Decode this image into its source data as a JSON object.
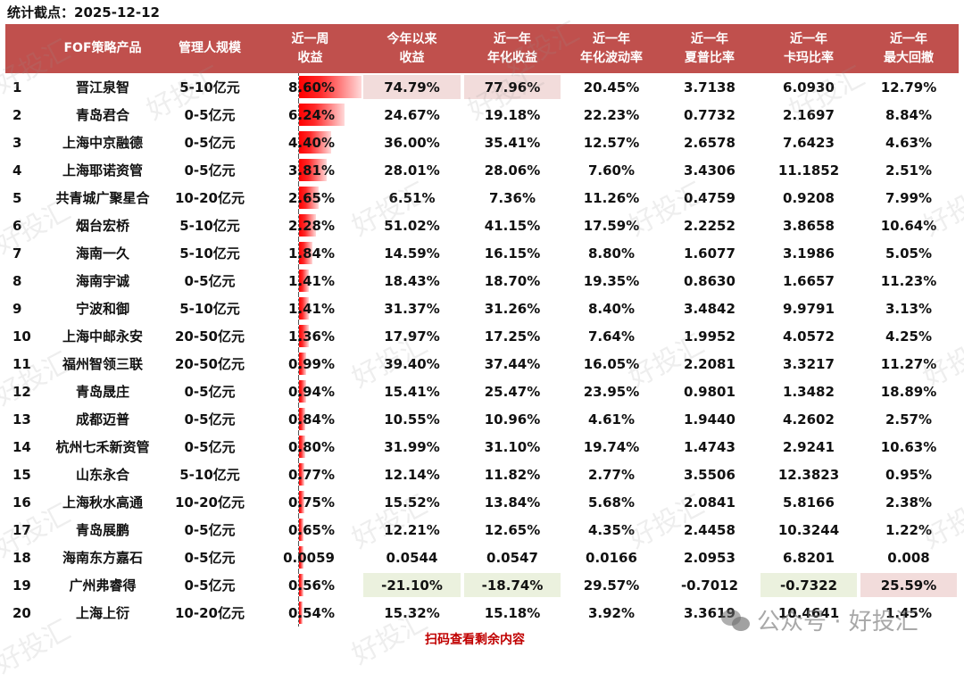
{
  "stat_date": "统计截点：2025-12-12",
  "columns": {
    "rank": "",
    "name": "FOF策略产品",
    "scale": "管理人规模",
    "week_l1": "近一周",
    "week_l2": "收益",
    "ytd_l1": "今年以来",
    "ytd_l2": "收益",
    "ann_l1": "近一年",
    "ann_l2": "年化收益",
    "vol_l1": "近一年",
    "vol_l2": "年化波动率",
    "sharpe_l1": "近一年",
    "sharpe_l2": "夏普比率",
    "calmar_l1": "近一年",
    "calmar_l2": "卡玛比率",
    "mdd_l1": "近一年",
    "mdd_l2": "最大回撤"
  },
  "rows": [
    {
      "rank": "1",
      "name": "晋江泉智",
      "scale": "5-10亿元",
      "week": "8.60%",
      "week_val": 8.6,
      "ytd": "74.79%",
      "ann": "77.96%",
      "vol": "20.45%",
      "sharpe": "3.7138",
      "calmar": "6.0930",
      "mdd": "12.79%"
    },
    {
      "rank": "2",
      "name": "青岛君合",
      "scale": "0-5亿元",
      "week": "6.24%",
      "week_val": 6.24,
      "ytd": "24.67%",
      "ann": "19.18%",
      "vol": "22.23%",
      "sharpe": "0.7732",
      "calmar": "2.1697",
      "mdd": "8.84%"
    },
    {
      "rank": "3",
      "name": "上海中京融德",
      "scale": "0-5亿元",
      "week": "4.40%",
      "week_val": 4.4,
      "ytd": "36.00%",
      "ann": "35.41%",
      "vol": "12.57%",
      "sharpe": "2.6578",
      "calmar": "7.6423",
      "mdd": "4.63%"
    },
    {
      "rank": "4",
      "name": "上海耶诺资管",
      "scale": "0-5亿元",
      "week": "3.81%",
      "week_val": 3.81,
      "ytd": "28.01%",
      "ann": "28.06%",
      "vol": "7.60%",
      "sharpe": "3.4306",
      "calmar": "11.1852",
      "mdd": "2.51%"
    },
    {
      "rank": "5",
      "name": "共青城广聚星合",
      "scale": "10-20亿元",
      "week": "2.65%",
      "week_val": 2.65,
      "ytd": "6.51%",
      "ann": "7.36%",
      "vol": "11.26%",
      "sharpe": "0.4759",
      "calmar": "0.9208",
      "mdd": "7.99%"
    },
    {
      "rank": "6",
      "name": "烟台宏桥",
      "scale": "5-10亿元",
      "week": "2.28%",
      "week_val": 2.28,
      "ytd": "51.02%",
      "ann": "41.15%",
      "vol": "17.59%",
      "sharpe": "2.2252",
      "calmar": "3.8658",
      "mdd": "10.64%"
    },
    {
      "rank": "7",
      "name": "海南一久",
      "scale": "5-10亿元",
      "week": "1.84%",
      "week_val": 1.84,
      "ytd": "14.59%",
      "ann": "16.15%",
      "vol": "8.80%",
      "sharpe": "1.6077",
      "calmar": "3.1986",
      "mdd": "5.05%"
    },
    {
      "rank": "8",
      "name": "海南宇诚",
      "scale": "0-5亿元",
      "week": "1.41%",
      "week_val": 1.41,
      "ytd": "18.43%",
      "ann": "18.70%",
      "vol": "19.35%",
      "sharpe": "0.8630",
      "calmar": "1.6657",
      "mdd": "11.23%"
    },
    {
      "rank": "9",
      "name": "宁波和御",
      "scale": "5-10亿元",
      "week": "1.41%",
      "week_val": 1.41,
      "ytd": "31.37%",
      "ann": "31.26%",
      "vol": "8.40%",
      "sharpe": "3.4842",
      "calmar": "9.9791",
      "mdd": "3.13%"
    },
    {
      "rank": "10",
      "name": "上海中邮永安",
      "scale": "20-50亿元",
      "week": "1.36%",
      "week_val": 1.36,
      "ytd": "17.97%",
      "ann": "17.25%",
      "vol": "7.64%",
      "sharpe": "1.9952",
      "calmar": "4.0572",
      "mdd": "4.25%"
    },
    {
      "rank": "11",
      "name": "福州智领三联",
      "scale": "20-50亿元",
      "week": "0.99%",
      "week_val": 0.99,
      "ytd": "39.40%",
      "ann": "37.44%",
      "vol": "16.05%",
      "sharpe": "2.2081",
      "calmar": "3.3217",
      "mdd": "11.27%"
    },
    {
      "rank": "12",
      "name": "青岛晟庄",
      "scale": "0-5亿元",
      "week": "0.94%",
      "week_val": 0.94,
      "ytd": "15.41%",
      "ann": "25.47%",
      "vol": "23.95%",
      "sharpe": "0.9801",
      "calmar": "1.3482",
      "mdd": "18.89%"
    },
    {
      "rank": "13",
      "name": "成都迈普",
      "scale": "0-5亿元",
      "week": "0.84%",
      "week_val": 0.84,
      "ytd": "10.55%",
      "ann": "10.96%",
      "vol": "4.61%",
      "sharpe": "1.9440",
      "calmar": "4.2602",
      "mdd": "2.57%"
    },
    {
      "rank": "14",
      "name": "杭州七禾新资管",
      "scale": "0-5亿元",
      "week": "0.80%",
      "week_val": 0.8,
      "ytd": "31.99%",
      "ann": "31.10%",
      "vol": "19.74%",
      "sharpe": "1.4743",
      "calmar": "2.9241",
      "mdd": "10.63%"
    },
    {
      "rank": "15",
      "name": "山东永合",
      "scale": "5-10亿元",
      "week": "0.77%",
      "week_val": 0.77,
      "ytd": "12.14%",
      "ann": "11.82%",
      "vol": "2.77%",
      "sharpe": "3.5506",
      "calmar": "12.3823",
      "mdd": "0.95%"
    },
    {
      "rank": "16",
      "name": "上海秋水高通",
      "scale": "10-20亿元",
      "week": "0.75%",
      "week_val": 0.75,
      "ytd": "15.52%",
      "ann": "13.84%",
      "vol": "5.68%",
      "sharpe": "2.0841",
      "calmar": "5.8166",
      "mdd": "2.38%"
    },
    {
      "rank": "17",
      "name": "青岛展鹏",
      "scale": "0-5亿元",
      "week": "0.65%",
      "week_val": 0.65,
      "ytd": "12.21%",
      "ann": "12.65%",
      "vol": "4.35%",
      "sharpe": "2.4458",
      "calmar": "10.3244",
      "mdd": "1.22%"
    },
    {
      "rank": "18",
      "name": "海南东方嘉石",
      "scale": "0-5亿元",
      "week": "0.0059",
      "week_val": 0.59,
      "ytd": "0.0544",
      "ann": "0.0547",
      "vol": "0.0166",
      "sharpe": "2.0953",
      "calmar": "6.8201",
      "mdd": "0.008"
    },
    {
      "rank": "19",
      "name": "广州弗睿得",
      "scale": "0-5亿元",
      "week": "0.56%",
      "week_val": 0.56,
      "ytd": "-21.10%",
      "ann": "-18.74%",
      "vol": "29.57%",
      "sharpe": "-0.7012",
      "calmar": "-0.7322",
      "mdd": "25.59%"
    },
    {
      "rank": "20",
      "name": "上海上衍",
      "scale": "10-20亿元",
      "week": "0.54%",
      "week_val": 0.54,
      "ytd": "15.32%",
      "ann": "15.18%",
      "vol": "3.92%",
      "sharpe": "3.3619",
      "calmar": "10.4641",
      "mdd": "1.45%"
    }
  ],
  "highlights": {
    "pink": [
      "0.ytd",
      "0.ann",
      "18.mdd"
    ],
    "green": [
      "18.ytd",
      "18.ann",
      "18.calmar"
    ]
  },
  "colors": {
    "header_bg": "#c0504d",
    "bar_red": "#ff0000",
    "highlight_pink": "#f2dcdb",
    "highlight_green": "#ebf1de",
    "note_red": "#c00000"
  },
  "footer_note": "扫码查看剩余内容",
  "brand": {
    "label": "公众号 · 好投汇"
  },
  "watermark_text": "好投汇"
}
